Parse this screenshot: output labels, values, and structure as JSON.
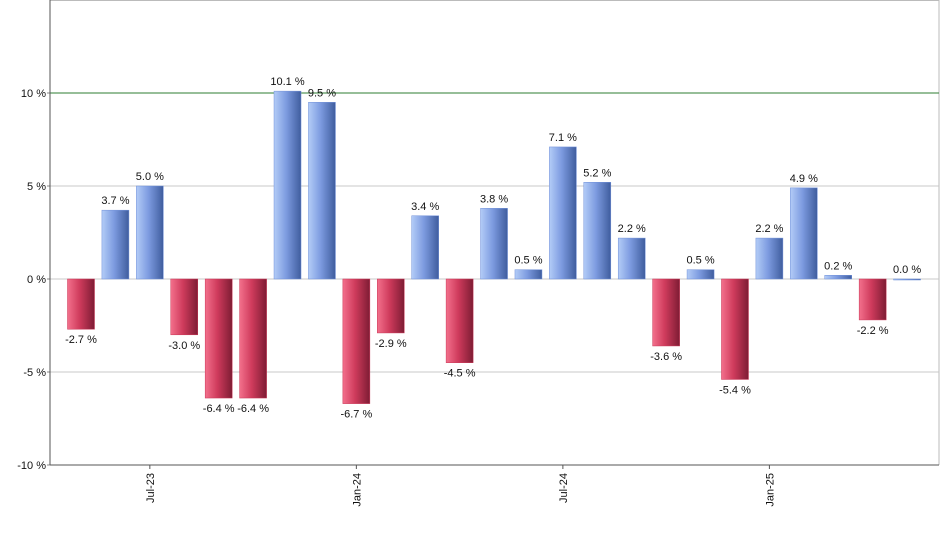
{
  "chart_data": {
    "type": "bar",
    "categories": [
      null,
      null,
      "Jul-23",
      null,
      null,
      null,
      null,
      null,
      "Jan-24",
      null,
      null,
      null,
      null,
      null,
      "Jul-24",
      null,
      null,
      null,
      null,
      null,
      "Jan-25",
      null,
      null,
      null,
      null
    ],
    "values": [
      -2.7,
      3.7,
      5.0,
      -3.0,
      -6.4,
      -6.4,
      10.1,
      9.5,
      -6.7,
      -2.9,
      3.4,
      -4.5,
      3.8,
      0.5,
      7.1,
      5.2,
      2.2,
      -3.6,
      0.5,
      -5.4,
      2.2,
      4.9,
      0.2,
      -2.2,
      0.0
    ],
    "value_labels": [
      "-2.7 %",
      "3.7 %",
      "5.0 %",
      "-3.0 %",
      "-6.4 %",
      "-6.4 %",
      "10.1 %",
      "9.5 %",
      "-6.7 %",
      "-2.9 %",
      "3.4 %",
      "-4.5 %",
      "3.8 %",
      "0.5 %",
      "7.1 %",
      "5.2 %",
      "2.2 %",
      "-3.6 %",
      "0.5 %",
      "-5.4 %",
      "2.2 %",
      "4.9 %",
      "0.2 %",
      "-2.2 %",
      "0.0 %"
    ],
    "positive_color": "#6f8fd8",
    "negative_color": "#c93555",
    "ylim": [
      -10,
      15
    ],
    "yticks": [
      {
        "value": -10,
        "label": "-10 %"
      },
      {
        "value": -5,
        "label": "-5 %"
      },
      {
        "value": 0,
        "label": "0 %"
      },
      {
        "value": 5,
        "label": "5 %"
      },
      {
        "value": 10,
        "label": "10 %"
      }
    ],
    "reference_line": {
      "value": 10,
      "color": "#2e7d32"
    },
    "grid": true
  }
}
